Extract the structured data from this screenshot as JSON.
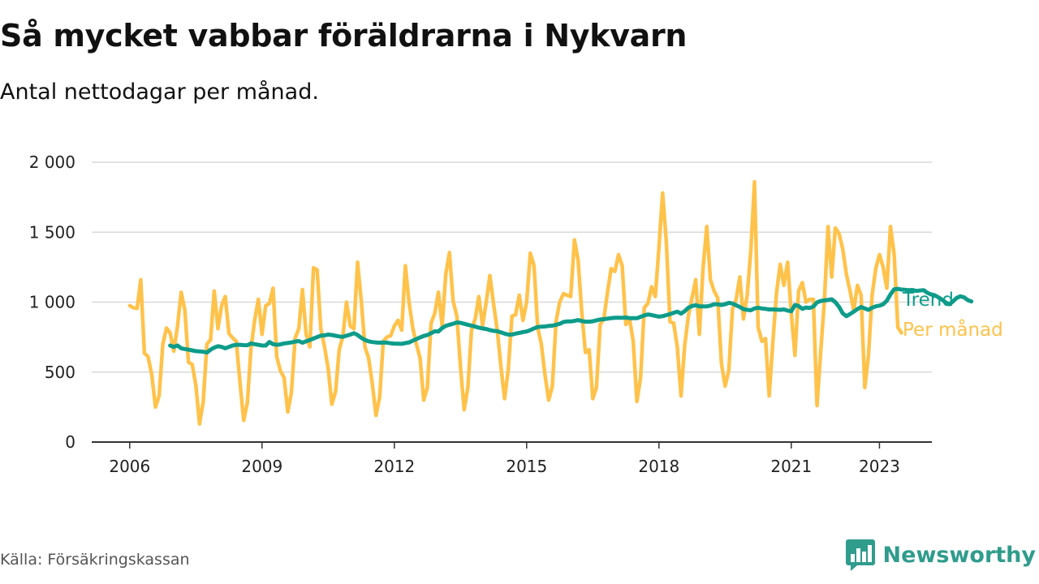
{
  "header": {
    "title": "Så mycket vabbar föräldrarna i Nykvarn",
    "subtitle": "Antal nettodagar per månad."
  },
  "footer": {
    "source": "Källa: Försäkringskassan",
    "brand": "Newsworthy",
    "brand_icon": "bar-chart-logo-icon"
  },
  "colors": {
    "per_month": "#ffc24a",
    "trend": "#0e9c8a",
    "grid": "#d9d9d9",
    "axis": "#333333"
  },
  "chart_data": {
    "type": "line",
    "title": "",
    "xlabel": "",
    "ylabel": "",
    "xlim": [
      "2006-01",
      "2023-04"
    ],
    "ylim": [
      0,
      2000
    ],
    "yticks": [
      0,
      500,
      1000,
      1500,
      2000
    ],
    "ytick_labels": [
      "0",
      "500",
      "1 000",
      "1 500",
      "2 000"
    ],
    "xtick_labels": [
      "2006",
      "2009",
      "2012",
      "2015",
      "2018",
      "2021",
      "2023"
    ],
    "grid": "horizontal",
    "legend": "direct labels at line ends (right)",
    "series": [
      {
        "name": "Trend",
        "start": "2006-12",
        "values": [
          690,
          680,
          690,
          670,
          665,
          660,
          655,
          650,
          648,
          645,
          640,
          660,
          675,
          685,
          680,
          670,
          680,
          690,
          695,
          695,
          693,
          692,
          705,
          700,
          695,
          690,
          690,
          715,
          700,
          695,
          698,
          705,
          708,
          712,
          718,
          722,
          710,
          720,
          730,
          740,
          750,
          760,
          763,
          768,
          765,
          760,
          755,
          752,
          760,
          768,
          778,
          765,
          745,
          730,
          720,
          715,
          712,
          710,
          712,
          710,
          706,
          704,
          703,
          702,
          707,
          712,
          724,
          736,
          748,
          758,
          765,
          778,
          792,
          790,
          815,
          830,
          838,
          845,
          855,
          852,
          845,
          838,
          832,
          825,
          818,
          812,
          808,
          800,
          795,
          792,
          784,
          775,
          768,
          768,
          775,
          780,
          786,
          790,
          800,
          812,
          822,
          825,
          826,
          830,
          832,
          838,
          845,
          858,
          862,
          862,
          866,
          872,
          865,
          860,
          860,
          863,
          870,
          876,
          878,
          882,
          886,
          888,
          888,
          888,
          890,
          886,
          885,
          885,
          895,
          905,
          912,
          908,
          902,
          896,
          900,
          907,
          914,
          924,
          932,
          918,
          935,
          960,
          972,
          978,
          970,
          970,
          970,
          975,
          985,
          985,
          980,
          985,
          995,
          990,
          978,
          965,
          950,
          945,
          942,
          955,
          960,
          955,
          952,
          948,
          948,
          946,
          945,
          948,
          940,
          935,
          980,
          972,
          952,
          962,
          958,
          968,
          998,
          1008,
          1012,
          1016,
          1020,
          1000,
          966,
          920,
          900,
          915,
          932,
          950,
          965,
          955,
          945,
          960,
          970,
          975,
          985,
          1010,
          1055,
          1092,
          1095,
          1090,
          1088,
          1085,
          1087,
          1080,
          1083,
          1086,
          1067,
          1055,
          1050,
          1035,
          1018,
          998,
          985,
          1005,
          1030,
          1042,
          1035,
          1015,
          1005
        ]
      },
      {
        "name": "Per månad",
        "start": "2006-01",
        "values": [
          975,
          960,
          955,
          1160,
          635,
          610,
          480,
          250,
          330,
          700,
          815,
          780,
          650,
          830,
          1070,
          945,
          570,
          555,
          405,
          130,
          290,
          700,
          730,
          1080,
          810,
          975,
          1040,
          775,
          745,
          720,
          430,
          155,
          280,
          670,
          870,
          1020,
          770,
          975,
          990,
          1100,
          610,
          510,
          460,
          215,
          355,
          745,
          810,
          1090,
          770,
          680,
          1245,
          1230,
          810,
          680,
          525,
          270,
          360,
          660,
          755,
          1000,
          830,
          810,
          1285,
          1010,
          680,
          600,
          420,
          190,
          320,
          720,
          750,
          760,
          830,
          870,
          800,
          1260,
          1000,
          820,
          700,
          600,
          300,
          390,
          850,
          920,
          1070,
          830,
          1200,
          1355,
          1010,
          900,
          540,
          230,
          390,
          800,
          880,
          1040,
          830,
          1000,
          1190,
          990,
          800,
          540,
          310,
          520,
          900,
          910,
          1050,
          870,
          1000,
          1350,
          1260,
          820,
          700,
          480,
          300,
          400,
          860,
          1000,
          1060,
          1050,
          1040,
          1445,
          1300,
          930,
          640,
          660,
          310,
          390,
          840,
          880,
          1070,
          1240,
          1220,
          1340,
          1260,
          840,
          880,
          720,
          290,
          460,
          960,
          990,
          1110,
          1040,
          1390,
          1780,
          1430,
          860,
          850,
          680,
          330,
          690,
          900,
          1030,
          1160,
          770,
          1240,
          1540,
          1160,
          1080,
          1030,
          560,
          400,
          510,
          950,
          1020,
          1180,
          880,
          1050,
          1370,
          1860,
          820,
          720,
          740,
          330,
          720,
          1070,
          1270,
          1120,
          1285,
          920,
          620,
          1080,
          1140,
          1000,
          1020,
          1020,
          260,
          640,
          1000,
          1540,
          1180,
          1530,
          1490,
          1380,
          1200,
          1080,
          940,
          1120,
          1050,
          390,
          620,
          1050,
          1240,
          1340,
          1250,
          1100,
          1540,
          1340,
          820,
          780
        ]
      }
    ]
  }
}
